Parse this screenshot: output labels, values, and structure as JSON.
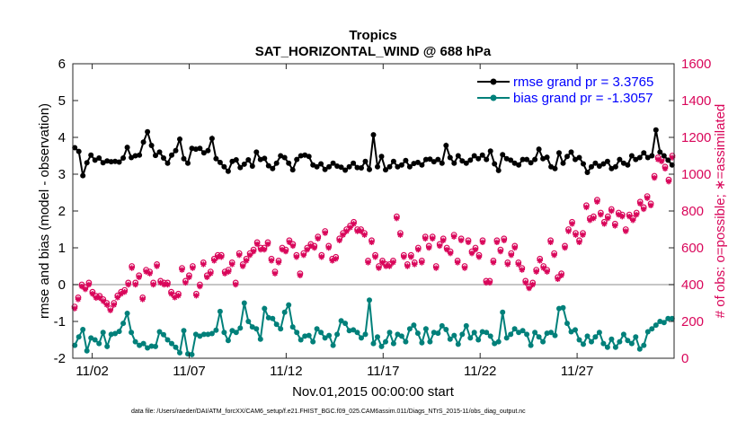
{
  "chart_data": {
    "type": "line",
    "title": "Tropics",
    "subtitle": "SAT_HORIZONTAL_WIND @ 688 hPa",
    "xlabel": "Nov.01,2015 00:00:00 start",
    "ylabel_left": "rmse and bias (model - observation)",
    "ylabel_right": "# of obs: o=possible; ∗=assimilated",
    "footnote": "data file: /Users/raeder/DAI/ATM_forcXX/CAM6_setup/f.e21.FHIST_BGC.f09_025.CAM6assim.011/Diags_NTrS_2015-11/obs_diag_output.nc",
    "x_ticks": [
      {
        "label": "11/02",
        "value": 2
      },
      {
        "label": "11/07",
        "value": 7
      },
      {
        "label": "11/12",
        "value": 12
      },
      {
        "label": "11/17",
        "value": 17
      },
      {
        "label": "11/22",
        "value": 22
      },
      {
        "label": "11/27",
        "value": 27
      }
    ],
    "xlim": [
      1,
      32
    ],
    "ylim_left": [
      -2,
      6
    ],
    "yticks_left": [
      "-2",
      "-1",
      "0",
      "1",
      "2",
      "3",
      "4",
      "5",
      "6"
    ],
    "ylim_right": [
      0,
      1600
    ],
    "yticks_right": [
      "0",
      "200",
      "400",
      "600",
      "800",
      "1000",
      "1200",
      "1400",
      "1600"
    ],
    "zero_line": 0,
    "colors": {
      "rmse": "#000000",
      "bias": "#00807a",
      "obs": "#d9065a",
      "legend_text": "#0000ff",
      "zero_line": "#b3b3b3"
    },
    "series": [
      {
        "name": "rmse",
        "legend": "rmse grand pr = 3.3765",
        "values": [
          3.72,
          3.62,
          2.96,
          3.31,
          3.52,
          3.38,
          3.44,
          3.31,
          3.36,
          3.34,
          3.35,
          3.33,
          3.44,
          3.73,
          3.45,
          3.5,
          3.52,
          3.87,
          4.15,
          3.78,
          3.51,
          3.6,
          3.44,
          3.3,
          3.52,
          3.64,
          3.95,
          3.42,
          3.3,
          3.7,
          3.68,
          3.7,
          3.58,
          3.64,
          3.97,
          3.42,
          3.32,
          3.2,
          3.08,
          3.35,
          3.39,
          3.18,
          3.27,
          3.39,
          3.22,
          3.6,
          3.4,
          3.43,
          3.23,
          3.15,
          3.3,
          3.5,
          3.45,
          3.3,
          3.12,
          3.4,
          3.5,
          3.52,
          3.48,
          3.25,
          3.2,
          3.28,
          3.13,
          3.2,
          3.3,
          3.22,
          3.19,
          3.11,
          3.2,
          3.3,
          3.18,
          3.17,
          3.35,
          3.13,
          4.07,
          3.2,
          3.48,
          3.12,
          3.2,
          3.35,
          3.2,
          3.25,
          3.37,
          3.2,
          3.29,
          3.32,
          3.25,
          3.4,
          3.41,
          3.34,
          3.4,
          3.3,
          3.78,
          3.45,
          3.3,
          3.5,
          3.36,
          3.3,
          3.38,
          3.5,
          3.42,
          3.52,
          3.4,
          3.63,
          3.28,
          3.1,
          3.53,
          3.42,
          3.38,
          3.3,
          3.25,
          3.4,
          3.4,
          3.31,
          3.4,
          3.68,
          3.42,
          3.46,
          3.2,
          3.15,
          3.58,
          3.3,
          3.48,
          3.6,
          3.4,
          3.45,
          3.28,
          3.05,
          3.2,
          3.3,
          3.22,
          3.28,
          3.35,
          3.15,
          3.2,
          3.4,
          3.3,
          3.25,
          3.5,
          3.4,
          3.45,
          3.58,
          3.45,
          3.5,
          4.2,
          3.6,
          3.5,
          3.38,
          3.25
        ]
      },
      {
        "name": "bias",
        "legend": "bias grand pr = -1.3057",
        "values": [
          -1.65,
          -1.42,
          -1.22,
          -1.8,
          -1.45,
          -1.5,
          -1.6,
          -1.3,
          -1.68,
          -1.35,
          -1.33,
          -1.27,
          -1.05,
          -0.78,
          -1.3,
          -1.55,
          -1.65,
          -1.6,
          -1.72,
          -1.67,
          -1.68,
          -1.28,
          -1.36,
          -1.5,
          -1.6,
          -1.7,
          -1.85,
          -1.25,
          -1.88,
          -1.9,
          -1.35,
          -1.4,
          -1.35,
          -1.35,
          -1.33,
          -1.24,
          -0.73,
          -1.3,
          -1.52,
          -1.25,
          -1.3,
          -1.18,
          -0.5,
          -1.0,
          -1.15,
          -1.2,
          -1.48,
          -0.65,
          -0.9,
          -0.92,
          -1.08,
          -1.2,
          -0.75,
          -0.55,
          -1.15,
          -1.3,
          -1.5,
          -1.4,
          -1.38,
          -1.55,
          -1.2,
          -1.3,
          -1.45,
          -1.38,
          -1.65,
          -1.35,
          -0.98,
          -1.05,
          -1.25,
          -1.23,
          -1.3,
          -1.45,
          -1.35,
          -0.42,
          -1.6,
          -1.42,
          -1.68,
          -1.55,
          -1.3,
          -1.6,
          -1.35,
          -1.4,
          -1.55,
          -1.2,
          -1.1,
          -1.32,
          -1.58,
          -1.2,
          -1.55,
          -1.3,
          -1.32,
          -1.12,
          -1.22,
          -1.48,
          -1.38,
          -1.62,
          -1.35,
          -1.12,
          -1.45,
          -1.3,
          -1.5,
          -1.28,
          -1.3,
          -1.4,
          -1.6,
          -1.55,
          -0.75,
          -1.45,
          -1.35,
          -1.2,
          -1.3,
          -1.25,
          -1.35,
          -1.65,
          -1.3,
          -1.42,
          -1.55,
          -1.32,
          -1.3,
          -1.38,
          -0.65,
          -0.63,
          -1.05,
          -1.28,
          -1.23,
          -1.5,
          -1.62,
          -1.4,
          -1.55,
          -1.42,
          -1.3,
          -1.6,
          -1.7,
          -1.48,
          -1.7,
          -1.55,
          -1.35,
          -1.52,
          -1.6,
          -1.42,
          -1.75,
          -1.65,
          -1.28,
          -1.2,
          -1.1,
          -1.0,
          -1.03,
          -0.92,
          -0.92
        ]
      },
      {
        "name": "obs_possible",
        "style": "o",
        "values": [
          280,
          330,
          400,
          385,
          410,
          360,
          338,
          338,
          320,
          300,
          270,
          300,
          340,
          360,
          370,
          410,
          500,
          410,
          450,
          330,
          480,
          470,
          410,
          510,
          420,
          410,
          410,
          360,
          340,
          350,
          490,
          420,
          450,
          500,
          350,
          400,
          520,
          450,
          470,
          540,
          560,
          560,
          470,
          480,
          520,
          410,
          570,
          510,
          540,
          570,
          590,
          630,
          600,
          600,
          630,
          540,
          470,
          530,
          600,
          590,
          640,
          620,
          560,
          460,
          570,
          600,
          620,
          610,
          660,
          560,
          690,
          610,
          540,
          550,
          650,
          680,
          700,
          720,
          740,
          700,
          700,
          680,
          530,
          640,
          560,
          500,
          530,
          510,
          510,
          530,
          770,
          680,
          560,
          510,
          560,
          520,
          600,
          530,
          660,
          610,
          660,
          500,
          620,
          650,
          600,
          580,
          670,
          530,
          650,
          500,
          640,
          580,
          600,
          560,
          640,
          420,
          420,
          530,
          640,
          590,
          650,
          520,
          570,
          610,
          520,
          490,
          420,
          390,
          410,
          480,
          540,
          500,
          480,
          640,
          570,
          440,
          460,
          610,
          700,
          740,
          680,
          640,
          680,
          830,
          760,
          770,
          860,
          790,
          740,
          770,
          810,
          730,
          790,
          780,
          700,
          780,
          760,
          790,
          850,
          820,
          880,
          840,
          990,
          1090,
          1080,
          1040,
          970,
          1100
        ]
      },
      {
        "name": "obs_assimilated",
        "style": "*",
        "values": [
          270,
          320,
          390,
          375,
          400,
          350,
          328,
          328,
          310,
          290,
          260,
          290,
          330,
          350,
          360,
          400,
          490,
          400,
          440,
          320,
          470,
          460,
          400,
          500,
          410,
          400,
          400,
          350,
          330,
          340,
          480,
          410,
          440,
          490,
          340,
          390,
          510,
          440,
          460,
          530,
          550,
          550,
          460,
          470,
          510,
          400,
          560,
          500,
          530,
          560,
          580,
          620,
          590,
          590,
          620,
          530,
          460,
          520,
          590,
          580,
          630,
          610,
          550,
          450,
          560,
          590,
          610,
          600,
          650,
          550,
          680,
          600,
          530,
          540,
          640,
          670,
          690,
          710,
          730,
          690,
          690,
          670,
          520,
          630,
          550,
          490,
          520,
          500,
          500,
          520,
          760,
          670,
          550,
          500,
          550,
          510,
          590,
          520,
          650,
          600,
          650,
          490,
          610,
          640,
          590,
          570,
          660,
          520,
          640,
          490,
          630,
          570,
          590,
          550,
          630,
          410,
          410,
          520,
          630,
          580,
          640,
          510,
          560,
          600,
          510,
          480,
          410,
          380,
          400,
          470,
          530,
          490,
          470,
          630,
          560,
          430,
          450,
          600,
          690,
          730,
          670,
          630,
          670,
          820,
          750,
          760,
          850,
          780,
          730,
          760,
          800,
          720,
          780,
          770,
          690,
          770,
          750,
          780,
          840,
          810,
          870,
          830,
          980,
          1080,
          1070,
          1030,
          960,
          1090
        ]
      }
    ]
  }
}
